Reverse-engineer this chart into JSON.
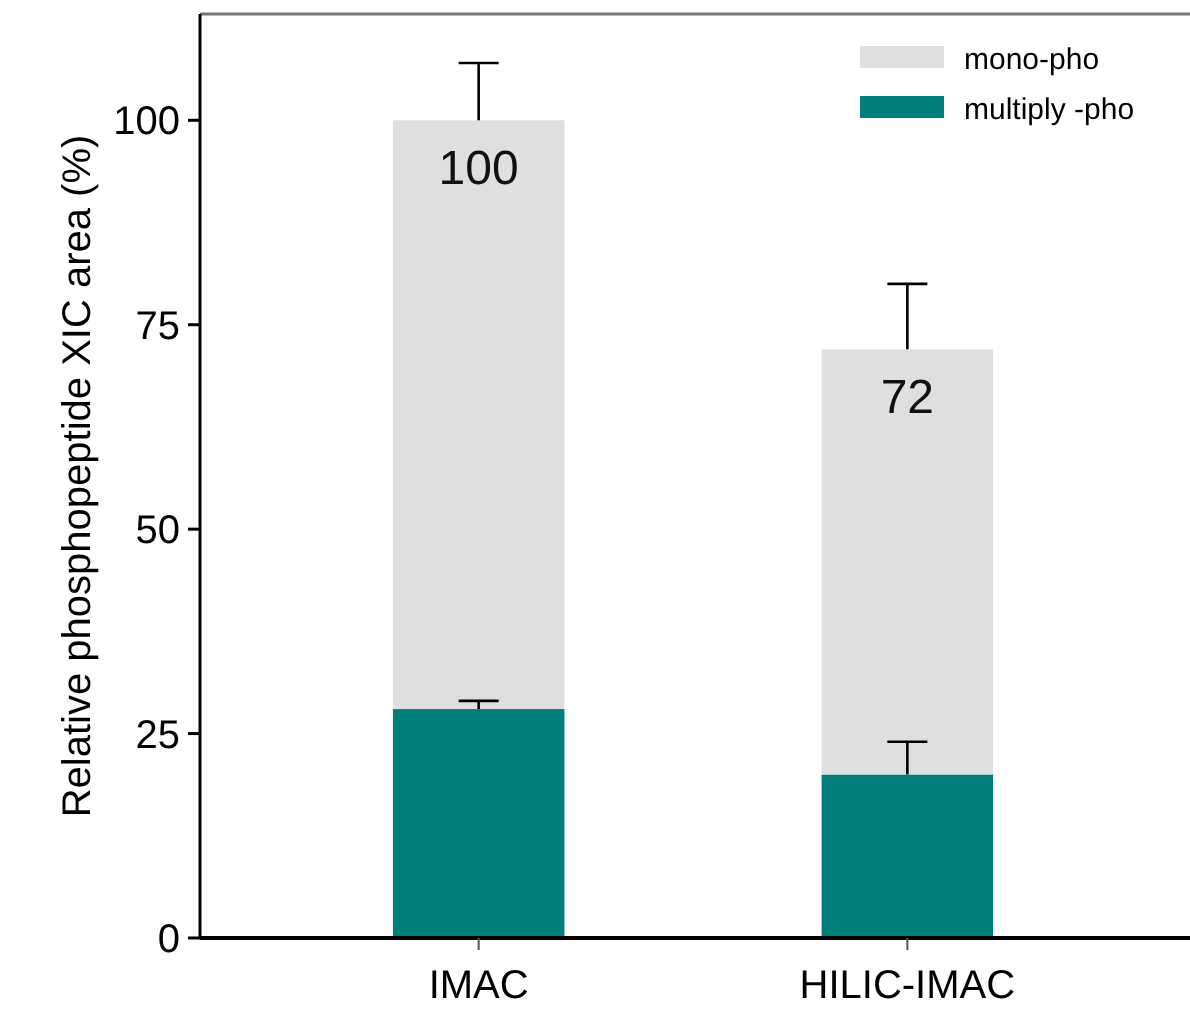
{
  "chart_data": {
    "type": "bar",
    "stacked": true,
    "ylabel": "Relative phosphopeptide XIC area (%)",
    "categories": [
      "IMAC",
      "HILIC-IMAC"
    ],
    "series": [
      {
        "name": "multiply -pho",
        "color": "#007f7a",
        "values": [
          28,
          20
        ],
        "errors": [
          [
            28,
            29
          ],
          [
            20,
            24
          ]
        ]
      },
      {
        "name": "mono-pho",
        "color": "#dfdfdf",
        "values": [
          72,
          52
        ],
        "errors": [
          [
            100,
            107
          ],
          [
            72,
            80
          ]
        ]
      }
    ],
    "totals": [
      "100",
      "72"
    ],
    "ylim": [
      0,
      113
    ],
    "yticks": [
      0,
      25,
      50,
      75,
      100
    ],
    "grid": false,
    "legend": "top right"
  }
}
